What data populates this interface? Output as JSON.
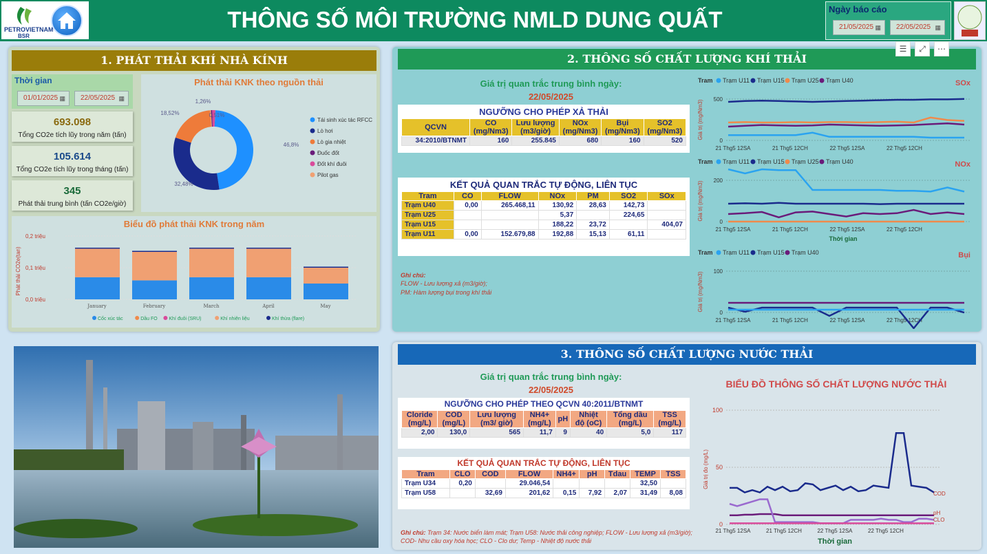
{
  "header": {
    "title": "THÔNG SỐ MÔI TRƯỜNG NMLD DUNG QUẤT",
    "logo_text": "PETROVIETNAM",
    "logo_sub": "BSR",
    "report_label": "Ngày báo cáo",
    "report_from": "21/05/2025",
    "report_to": "22/05/2025"
  },
  "colors": {
    "header": "#0d8a5f",
    "sec1": "#9a7d0a",
    "sec2": "#1f9a57",
    "sec3": "#1768b8"
  },
  "sec1": {
    "title": "1. PHÁT THẢI KHÍ NHÀ KÍNH",
    "time_label": "Thời gian",
    "date_from": "01/01/2025",
    "date_to": "22/05/2025",
    "cards": [
      {
        "value": "693.098",
        "desc": "Tổng CO2e tích lũy trong năm (tấn)"
      },
      {
        "value": "105.614",
        "desc": "Tổng CO2e tích lũy trong tháng (tấn)"
      },
      {
        "value": "345",
        "desc": "Phát thải trung bình (tấn CO2e/giờ)"
      }
    ]
  },
  "donut": {
    "title": "Phát thải KNK theo nguồn thải",
    "labels": [
      "46,8%",
      "32,48%",
      "18,52%",
      "1,26%",
      "0,51%"
    ],
    "legend": [
      {
        "name": "Tái sinh xúc tác RFCC",
        "color": "#1e90ff"
      },
      {
        "name": "Lò hơi",
        "color": "#1a2b8c"
      },
      {
        "name": "Lò gia nhiệt",
        "color": "#ee7b3a"
      },
      {
        "name": "Đuốc đốt",
        "color": "#6a1b7a"
      },
      {
        "name": "Đốt khí đuôi",
        "color": "#d94b9b"
      },
      {
        "name": "Pilot gas",
        "color": "#f0a072"
      }
    ]
  },
  "chart_data": [
    {
      "type": "bar",
      "title": "Biểu đồ phát thải KNK trong năm",
      "ylabel": "Phát thải CO2e(tan)",
      "yticks": [
        "0,0 triệu",
        "0,1 triệu",
        "0,2 triệu"
      ],
      "categories": [
        "January",
        "February",
        "March",
        "April",
        "May"
      ],
      "series": [
        {
          "name": "Cốc xúc tác",
          "values": [
            0.07,
            0.06,
            0.07,
            0.07,
            0.05
          ]
        },
        {
          "name": "Dầu FO",
          "values": [
            0.0,
            0.0,
            0.0,
            0.0,
            0.0
          ]
        },
        {
          "name": "Khí đuôi (SRU)",
          "values": [
            0.0,
            0.0,
            0.0,
            0.0,
            0.0
          ]
        },
        {
          "name": "Khí nhiên liệu",
          "values": [
            0.09,
            0.09,
            0.09,
            0.09,
            0.05
          ]
        },
        {
          "name": "Khí thừa (flare)",
          "values": [
            0.0,
            0.0,
            0.0,
            0.0,
            0.0
          ]
        }
      ]
    },
    {
      "type": "pie",
      "title": "Phát thải KNK theo nguồn thải",
      "categories": [
        "Tái sinh xúc tác RFCC",
        "Lò hơi",
        "Lò gia nhiệt",
        "Đuốc đốt",
        "Đốt khí đuôi",
        "Pilot gas"
      ],
      "values": [
        46.8,
        32.48,
        18.52,
        0.51,
        1.26,
        0.43
      ]
    },
    {
      "type": "line",
      "title": "SOx",
      "ylabel": "Giá trị (mg/Nm3)",
      "yticks": [
        "0",
        "500"
      ],
      "xticks": [
        "21 Thg5 12SA",
        "21 Thg5 12CH",
        "22 Thg5 12SA",
        "22 Thg5 12CH"
      ],
      "legend_title": "Tram"
    },
    {
      "type": "line",
      "title": "NOx",
      "ylabel": "Giá trị (mg/Nm3)",
      "xlabel": "Thời gian",
      "yticks": [
        "0",
        "200"
      ],
      "xticks": [
        "21 Thg5 12SA",
        "21 Thg5 12CH",
        "22 Thg5 12SA",
        "22 Thg5 12CH"
      ],
      "legend_title": "Tram"
    },
    {
      "type": "line",
      "title": "Bụi",
      "ylabel": "Giá trị (mg/Nm3)",
      "yticks": [
        "0",
        "100"
      ],
      "xticks": [
        "21 Thg5 12SA",
        "21 Thg5 12CH",
        "22 Thg5 12SA",
        "22 Thg5 12CH"
      ],
      "legend_title": "Tram"
    },
    {
      "type": "line",
      "title": "BIỂU ĐỒ THÔNG SỐ CHẤT LƯỢNG NƯỚC THẢI",
      "ylabel": "Giá trị đo (mg/L)",
      "xlabel": "Thời gian",
      "yticks": [
        "0",
        "50",
        "100"
      ],
      "xticks": [
        "21 Thg5 12SA",
        "21 Thg5 12CH",
        "22 Thg5 12SA",
        "22 Thg5 12CH"
      ],
      "series_labels": [
        "COD",
        "pH",
        "CLO"
      ]
    }
  ],
  "bar_legend": [
    {
      "name": "Cốc xúc tác",
      "color": "#2a8be8"
    },
    {
      "name": "Dầu FO",
      "color": "#f08a4b"
    },
    {
      "name": "Khí đuôi (SRU)",
      "color": "#d94b9b"
    },
    {
      "name": "Khí nhiên liệu",
      "color": "#f0a072"
    },
    {
      "name": "Khí thừa (flare)",
      "color": "#1a2b8c"
    }
  ],
  "gas_legends": {
    "four": [
      "Tram",
      "Trạm U11",
      "Trạm U15",
      "Trạm U25",
      "Trạm U40"
    ],
    "three": [
      "Tram",
      "Trạm U11",
      "Trạm U15",
      "Trạm U40"
    ]
  },
  "sec2": {
    "title": "2. THÔNG SỐ CHẤT LƯỢNG KHÍ THẢI",
    "avg_label": "Giá trị quan trắc trung bình ngày:",
    "avg_date": "22/05/2025",
    "limit_title": "NGƯỠNG CHO PHÉP XẢ THẢI",
    "limit_headers": [
      "QCVN",
      "CO\n(mg/Nm3)",
      "Lưu lượng\n(m3/giờ)",
      "NOx\n(mg/Nm3)",
      "Bụi\n(mg/Nm3)",
      "SO2\n(mg/Nm3)"
    ],
    "limit_row": [
      "34:2010/BTNMT",
      "160",
      "255.845",
      "680",
      "160",
      "520"
    ],
    "auto_title": "KẾT QUẢ QUAN TRẮC TỰ ĐỘNG, LIÊN TỤC",
    "auto_headers": [
      "Tram",
      "CO",
      "FLOW",
      "NOx",
      "PM",
      "SO2",
      "SOx"
    ],
    "auto_rows": [
      [
        "Trạm U40",
        "0,00",
        "265.468,11",
        "130,92",
        "28,63",
        "142,73",
        ""
      ],
      [
        "Trạm U25",
        "",
        "",
        "5,37",
        "",
        "224,65",
        ""
      ],
      [
        "Trạm U15",
        "",
        "",
        "188,22",
        "23,72",
        "",
        "404,07"
      ],
      [
        "Trạm U11",
        "0,00",
        "152.679,88",
        "192,88",
        "15,13",
        "61,11",
        ""
      ]
    ],
    "note_title": "Ghi chú:",
    "note_lines": [
      "FLOW - Lưu lượng xả (m3/giờ);",
      "PM: Hàm lượng bụi trong khí thải"
    ]
  },
  "sec3": {
    "title": "3. THÔNG SỐ CHẤT LƯỢNG NƯỚC THẢI",
    "avg_label": "Giá trị quan trắc trung bình ngày:",
    "avg_date": "22/05/2025",
    "limit_title": "NGƯỠNG CHO PHÉP THEO QCVN 40:2011/BTNMT",
    "limit_headers": [
      "Cloride\n(mg/L)",
      "COD\n(mg/L)",
      "Lưu lượng\n(m3/ giờ)",
      "NH4+\n(mg/L)",
      "pH",
      "Nhiệt\nđộ (oC)",
      "Tổng dầu\n(mg/L)",
      "TSS\n(mg/L)"
    ],
    "limit_row": [
      "2,00",
      "130,0",
      "565",
      "11,7",
      "9",
      "40",
      "5,0",
      "117"
    ],
    "auto_title": "KẾT QUẢ QUAN TRẮC TỰ ĐỘNG, LIÊN TỤC",
    "auto_headers": [
      "Tram",
      "CLO",
      "COD",
      "FLOW",
      "NH4+",
      "pH",
      "Tdau",
      "TEMP",
      "TSS"
    ],
    "auto_rows": [
      [
        "Trạm U34",
        "0,20",
        "",
        "29.046,54",
        "",
        "",
        "",
        "32,50",
        ""
      ],
      [
        "Trạm U58",
        "",
        "32,69",
        "201,62",
        "0,15",
        "7,92",
        "2,07",
        "31,49",
        "8,08"
      ]
    ],
    "note_title": "Ghi chú:",
    "note_text": "Trạm 34: Nước biển làm mát; Trạm U58: Nước thải công nghiệp; FLOW - Lưu lượng xả (m3/giờ); COD- Nhu cầu oxy hóa học; CLO - Clo dư; Temp - Nhiệt độ nước thải"
  }
}
